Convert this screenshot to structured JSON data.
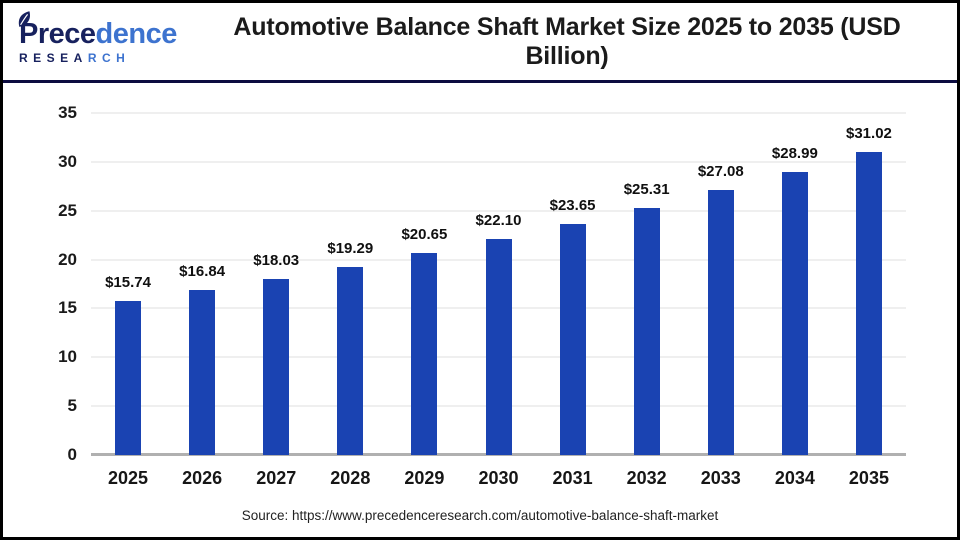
{
  "logo": {
    "word": "Precedence",
    "word_dark": "Prece",
    "word_light": "dence",
    "sub": "RESEARCH",
    "sub_dark": "RESEA",
    "sub_light": "RCH"
  },
  "header": {
    "title": "Automotive Balance Shaft Market Size 2025 to 2035 (USD Billion)"
  },
  "footer": {
    "source": "Source: https://www.precedenceresearch.com/automotive-balance-shaft-market"
  },
  "colors": {
    "bar_blue": "#1a43b2",
    "divider_navy": "#0c0c40",
    "gridline": "#efefef",
    "axis_line": "#b0b0b0",
    "logo_dark_navy": "#17215e",
    "logo_light_blue": "#3d73cf",
    "text_dark": "#1a1a1a"
  },
  "chart_data": {
    "type": "bar",
    "title": "Automotive Balance Shaft Market Size 2025 to 2035 (USD Billion)",
    "categories": [
      "2025",
      "2026",
      "2027",
      "2028",
      "2029",
      "2030",
      "2031",
      "2032",
      "2033",
      "2034",
      "2035"
    ],
    "values": [
      15.74,
      16.84,
      18.03,
      19.29,
      20.65,
      22.1,
      23.65,
      25.31,
      27.08,
      28.99,
      31.02
    ],
    "value_labels": [
      "$15.74",
      "$16.84",
      "$18.03",
      "$19.29",
      "$20.65",
      "$22.10",
      "$23.65",
      "$25.31",
      "$27.08",
      "$28.99",
      "$31.02"
    ],
    "y_ticks": [
      0,
      5,
      10,
      15,
      20,
      25,
      30,
      35
    ],
    "ylim": [
      0,
      35
    ],
    "xlabel": "",
    "ylabel": "",
    "grid": "horizontal",
    "legend": "none",
    "bar_color": "#1a43b2",
    "source": "Source: https://www.precedenceresearch.com/automotive-balance-shaft-market"
  }
}
